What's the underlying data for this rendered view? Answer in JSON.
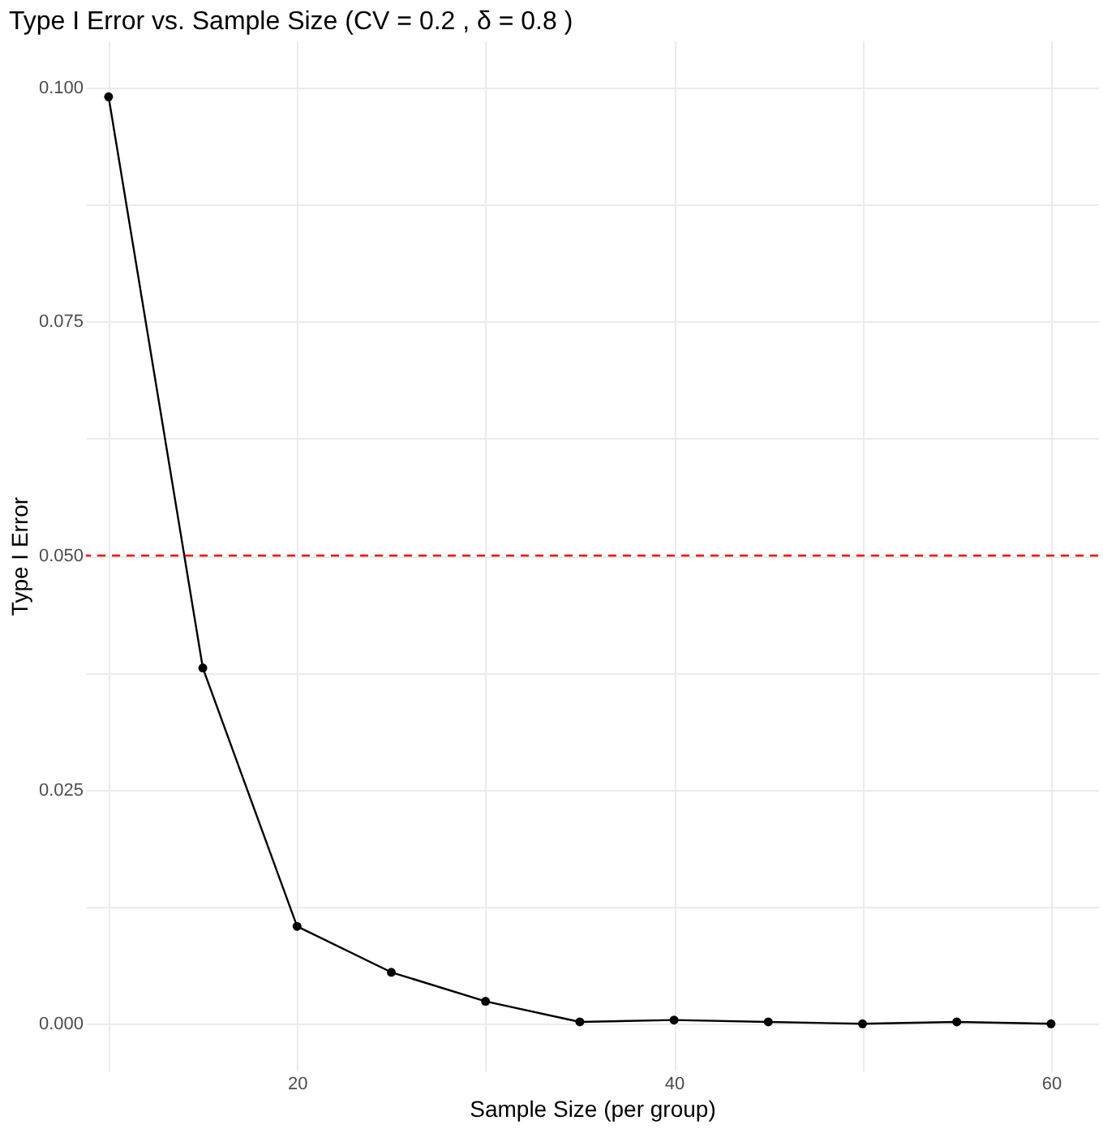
{
  "chart_data": {
    "type": "line",
    "title": "Type I Error vs. Sample Size (CV = 0.2 , δ = 0.8 )",
    "xlabel": "Sample Size (per group)",
    "ylabel": "Type I Error",
    "x": [
      10,
      15,
      20,
      25,
      30,
      35,
      40,
      45,
      50,
      55,
      60
    ],
    "series": [
      {
        "color": "#000000",
        "values": [
          0.099,
          0.038,
          0.0104,
          0.0055,
          0.0024,
          0.0002,
          0.0004,
          0.0002,
          0.0,
          0.0002,
          0.0
        ]
      }
    ],
    "marker": "circle",
    "line_style": "solid",
    "xlim": [
      8.8,
      62.5
    ],
    "xticks": [
      {
        "value": 10,
        "label": null
      },
      20,
      {
        "value": 30,
        "label": null
      },
      40,
      {
        "value": 50,
        "label": null
      },
      60
    ],
    "ylim": [
      -0.005,
      0.105
    ],
    "yticks": [
      {
        "value": 0,
        "label": "0.000"
      },
      {
        "value": 0.0125,
        "label": null
      },
      {
        "value": 0.025,
        "label": "0.025"
      },
      {
        "value": 0.0375,
        "label": null
      },
      {
        "value": 0.05,
        "label": "0.050"
      },
      {
        "value": 0.0625,
        "label": null
      },
      {
        "value": 0.075,
        "label": "0.075"
      },
      {
        "value": 0.0875,
        "label": null
      },
      {
        "value": 0.1,
        "label": "0.100"
      }
    ],
    "ref_lines": [
      {
        "axis": "y",
        "value": 0.05,
        "color": "#ff0000",
        "line_style": "dashed"
      }
    ],
    "grid": true
  }
}
